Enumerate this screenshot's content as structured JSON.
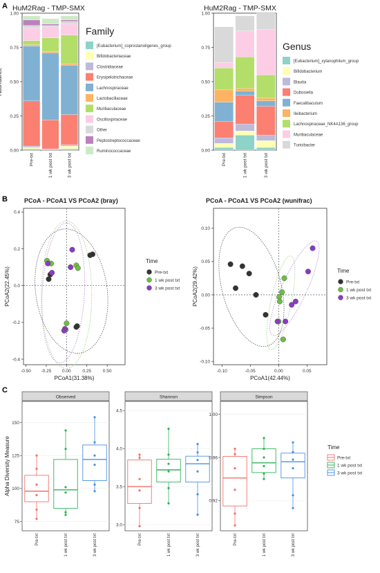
{
  "panel_letters": {
    "a": "A",
    "b": "B",
    "c": "C"
  },
  "chart_data": [
    {
      "id": "family",
      "type": "bar",
      "stacked": true,
      "title": "HuM2Rag - TMP-SMX",
      "ylabel": "Abundance",
      "ylim": [
        0,
        1
      ],
      "yticks": [
        "0.00",
        "0.25",
        "0.50",
        "0.75",
        "1.00"
      ],
      "categories": [
        "Pre-txt",
        "1 wk post txt",
        "3 wk post txt"
      ],
      "legend_title": "Family",
      "legend_position": "right",
      "series": [
        {
          "name": "[Eubacterium]_coprostanoligenes_group",
          "color": "#8dd3c7",
          "values": [
            0.01,
            0.0,
            0.01
          ]
        },
        {
          "name": "Bifidobacteriaceae",
          "color": "#ffffb3",
          "values": [
            0.01,
            0.0,
            0.02
          ]
        },
        {
          "name": "Clostridiaceae",
          "color": "#bebada",
          "values": [
            0.01,
            0.01,
            0.01
          ]
        },
        {
          "name": "Erysipelotrichaceae",
          "color": "#fb8072",
          "values": [
            0.33,
            0.21,
            0.22
          ]
        },
        {
          "name": "Lachnospiraceae",
          "color": "#80b1d3",
          "values": [
            0.4,
            0.49,
            0.36
          ]
        },
        {
          "name": "Lactobacillaceae",
          "color": "#fdb462",
          "values": [
            0.01,
            0.01,
            0.01
          ]
        },
        {
          "name": "Muribaculaceae",
          "color": "#b3de69",
          "values": [
            0.03,
            0.1,
            0.21
          ]
        },
        {
          "name": "Oscillospiraceae",
          "color": "#fccde5",
          "values": [
            0.09,
            0.08,
            0.08
          ]
        },
        {
          "name": "Other",
          "color": "#d9d9d9",
          "values": [
            0.02,
            0.01,
            0.02
          ]
        },
        {
          "name": "Peptostreptococcaceae",
          "color": "#bc80bd",
          "values": [
            0.04,
            0.01,
            0.01
          ]
        },
        {
          "name": "Ruminococcaceae",
          "color": "#ccebc5",
          "values": [
            0.03,
            0.04,
            0.03
          ]
        }
      ]
    },
    {
      "id": "genus",
      "type": "bar",
      "stacked": true,
      "title": "HuM2Rag - TMP-SMX",
      "ylabel": "",
      "ylim": [
        0,
        1
      ],
      "yticks": [
        "0.00",
        "0.25",
        "0.50",
        "0.75",
        "1.00"
      ],
      "categories": [
        "Pre-txt",
        "1 wk post txt",
        "3 wk post txt"
      ],
      "legend_title": "Genus",
      "legend_position": "right",
      "series": [
        {
          "name": "[Eubacterium]_xylanophilum_group",
          "color": "#8dd3c7",
          "values": [
            0.02,
            0.11,
            0.02
          ]
        },
        {
          "name": "Bifidobacterium",
          "color": "#ffffb3",
          "values": [
            0.03,
            0.03,
            0.05
          ]
        },
        {
          "name": "Blautia",
          "color": "#bebada",
          "values": [
            0.04,
            0.05,
            0.04
          ]
        },
        {
          "name": "Dubosiella",
          "color": "#fb8072",
          "values": [
            0.12,
            0.21,
            0.21
          ]
        },
        {
          "name": "Faecalibaculum",
          "color": "#80b1d3",
          "values": [
            0.14,
            0.03,
            0.04
          ]
        },
        {
          "name": "Ileibacterium",
          "color": "#fdb462",
          "values": [
            0.09,
            0.02,
            0.02
          ]
        },
        {
          "name": "Lachnospiraceae_NK4A136_group",
          "color": "#b3de69",
          "values": [
            0.16,
            0.23,
            0.17
          ]
        },
        {
          "name": "Muribaculaceae",
          "color": "#fccde5",
          "values": [
            0.04,
            0.19,
            0.33
          ]
        },
        {
          "name": "Turicibacter",
          "color": "#d9d9d9",
          "values": [
            0.26,
            0.11,
            0.12
          ]
        }
      ]
    },
    {
      "id": "pcoa_bray",
      "type": "scatter",
      "title": "PCoA - PCoA1 VS PCoA2 (bray)",
      "xlabel": "PCoA1(31.38%)",
      "ylabel": "PCoA2(22.45%)",
      "xlim": [
        -0.53,
        0.72
      ],
      "ylim": [
        -0.43,
        0.42
      ],
      "xticks": [
        -0.5,
        -0.25,
        0,
        0.25,
        0.5
      ],
      "xtick_labels": [
        "-0.50",
        "-0.25",
        "0.00",
        "0.25",
        "0.50"
      ],
      "yticks": [
        -0.4,
        -0.2,
        0,
        0.2,
        0.4
      ],
      "ytick_labels": [
        "-0.4",
        "-0.2",
        "0.0",
        "0.2",
        "0.4"
      ],
      "legend_title": "Time",
      "series": [
        {
          "name": "Pre-txt",
          "color": "#333333",
          "points": [
            [
              -0.22,
              0.035
            ],
            [
              -0.2,
              0.06
            ],
            [
              0.29,
              0.165
            ],
            [
              0.32,
              0.17
            ],
            [
              0.13,
              -0.22
            ],
            [
              0.12,
              -0.225
            ]
          ]
        },
        {
          "name": "1 wk post txt",
          "color": "#6dbe45",
          "points": [
            [
              -0.24,
              0.135
            ],
            [
              -0.19,
              0.12
            ],
            [
              0.12,
              0.11
            ],
            [
              0.14,
              0.095
            ],
            [
              0.0,
              -0.205
            ],
            [
              -0.01,
              -0.24
            ]
          ]
        },
        {
          "name": "3 wk post txt",
          "color": "#8a3bbf",
          "points": [
            [
              -0.23,
              0.12
            ],
            [
              -0.18,
              0.07
            ],
            [
              0.07,
              0.195
            ],
            [
              0.05,
              0.1
            ],
            [
              -0.02,
              -0.235
            ],
            [
              -0.03,
              -0.245
            ]
          ]
        }
      ],
      "ellipses": [
        {
          "cx": 0.06,
          "cy": -0.03,
          "rx": 0.44,
          "ry": 0.34,
          "rot": -8,
          "color": "#555555"
        },
        {
          "cx": 0.0,
          "cy": -0.05,
          "rx": 0.31,
          "ry": 0.4,
          "rot": 0,
          "color": "#9bcf7a"
        },
        {
          "cx": -0.04,
          "cy": -0.04,
          "rx": 0.26,
          "ry": 0.38,
          "rot": 3,
          "color": "#b48ad0"
        }
      ]
    },
    {
      "id": "pcoa_wunifrac",
      "type": "scatter",
      "title": "PCoA - PCoA1 VS PCoA2 (wunifrac)",
      "xlabel": "PCoA1(42.44%)",
      "ylabel": "PCoA2(29.42%)",
      "xlim": [
        -0.115,
        0.085
      ],
      "ylim": [
        -0.105,
        0.13
      ],
      "xticks": [
        -0.1,
        -0.05,
        0,
        0.05
      ],
      "xtick_labels": [
        "-0.10",
        "-0.05",
        "0.00",
        "0.05"
      ],
      "yticks": [
        -0.1,
        -0.05,
        0,
        0.05,
        0.1
      ],
      "ytick_labels": [
        "-0.10",
        "-0.05",
        "0.00",
        "0.05",
        "0.10"
      ],
      "legend_title": "Time",
      "series": [
        {
          "name": "Pre-txt",
          "color": "#333333",
          "points": [
            [
              -0.085,
              0.046
            ],
            [
              -0.064,
              0.043
            ],
            [
              -0.076,
              0.01
            ],
            [
              -0.052,
              0.032
            ],
            [
              -0.04,
              0.0
            ],
            [
              -0.023,
              -0.03
            ]
          ]
        },
        {
          "name": "1 wk post txt",
          "color": "#6dbe45",
          "points": [
            [
              0.01,
              0.025
            ],
            [
              0.006,
              0.004
            ],
            [
              0.001,
              -0.003
            ],
            [
              0.002,
              -0.01
            ],
            [
              0.0,
              -0.04
            ],
            [
              0.008,
              -0.067
            ]
          ]
        },
        {
          "name": "3 wk post txt",
          "color": "#8a3bbf",
          "points": [
            [
              0.06,
              0.07
            ],
            [
              0.052,
              0.035
            ],
            [
              0.03,
              -0.01
            ],
            [
              0.023,
              -0.015
            ],
            [
              0.012,
              -0.04
            ],
            [
              -0.002,
              -0.04
            ]
          ]
        }
      ],
      "ellipses": [
        {
          "cx": -0.048,
          "cy": 0.012,
          "rx": 0.052,
          "ry": 0.092,
          "rot": -15,
          "color": "#555555"
        },
        {
          "cx": 0.004,
          "cy": -0.012,
          "rx": 0.018,
          "ry": 0.072,
          "rot": 12,
          "color": "#9bcf7a"
        },
        {
          "cx": 0.028,
          "cy": 0.01,
          "rx": 0.022,
          "ry": 0.078,
          "rot": 25,
          "color": "#b48ad0"
        }
      ]
    },
    {
      "id": "alpha_diversity",
      "type": "box",
      "ylabel": "Alpha Diversity Measure",
      "categories": [
        "Pre-txt",
        "1 wk post txt",
        "3 wk post txt"
      ],
      "legend_title": "Time",
      "legend_position": "right",
      "colors": [
        "#f0726a",
        "#2db35a",
        "#4a90e2"
      ],
      "facets": [
        {
          "name": "Observed",
          "ylim": [
            68,
            166
          ],
          "yticks": [
            75,
            100,
            125,
            150
          ],
          "ytick_labels": [
            "75",
            "100",
            "125",
            "150"
          ],
          "boxes": [
            {
              "min": 77,
              "q1": 90,
              "median": 98,
              "q3": 110,
              "max": 125,
              "points": [
                77,
                84,
                95,
                103,
                115,
                125
              ]
            },
            {
              "min": 80,
              "q1": 85,
              "median": 99,
              "q3": 122,
              "max": 144,
              "points": [
                80,
                82,
                97,
                101,
                130,
                144
              ]
            },
            {
              "min": 98,
              "q1": 106,
              "median": 122,
              "q3": 133,
              "max": 154,
              "points": [
                98,
                103,
                118,
                125,
                135,
                154
              ]
            }
          ]
        },
        {
          "name": "Shannon",
          "ylim": [
            2.92,
            4.62
          ],
          "yticks": [
            3.0,
            3.5,
            4.0,
            4.5
          ],
          "ytick_labels": [
            "3.0",
            "3.5",
            "4.0",
            "4.5"
          ],
          "boxes": [
            {
              "min": 2.98,
              "q1": 3.28,
              "median": 3.5,
              "q3": 3.85,
              "max": 3.92,
              "points": [
                2.98,
                3.22,
                3.45,
                3.6,
                3.88,
                3.92
              ]
            },
            {
              "min": 3.28,
              "q1": 3.56,
              "median": 3.72,
              "q3": 3.86,
              "max": 4.26,
              "points": [
                3.28,
                3.48,
                3.7,
                3.8,
                3.92,
                4.26
              ]
            },
            {
              "min": 3.13,
              "q1": 3.56,
              "median": 3.8,
              "q3": 3.9,
              "max": 4.06,
              "points": [
                3.13,
                3.4,
                3.7,
                3.85,
                3.95,
                4.06
              ]
            }
          ]
        },
        {
          "name": "Simpson",
          "ylim": [
            0.892,
            1.012
          ],
          "yticks": [
            0.92,
            0.96,
            1.0
          ],
          "ytick_labels": [
            "0.92",
            "0.96",
            "1.00"
          ],
          "boxes": [
            {
              "min": 0.897,
              "q1": 0.915,
              "median": 0.941,
              "q3": 0.961,
              "max": 0.968,
              "points": [
                0.897,
                0.908,
                0.93,
                0.95,
                0.963,
                0.968
              ]
            },
            {
              "min": 0.94,
              "q1": 0.946,
              "median": 0.955,
              "q3": 0.968,
              "max": 0.978,
              "points": [
                0.94,
                0.945,
                0.952,
                0.96,
                0.968,
                0.978
              ]
            },
            {
              "min": 0.913,
              "q1": 0.941,
              "median": 0.956,
              "q3": 0.964,
              "max": 0.974,
              "points": [
                0.913,
                0.925,
                0.95,
                0.958,
                0.965,
                0.974
              ]
            }
          ]
        }
      ]
    }
  ]
}
